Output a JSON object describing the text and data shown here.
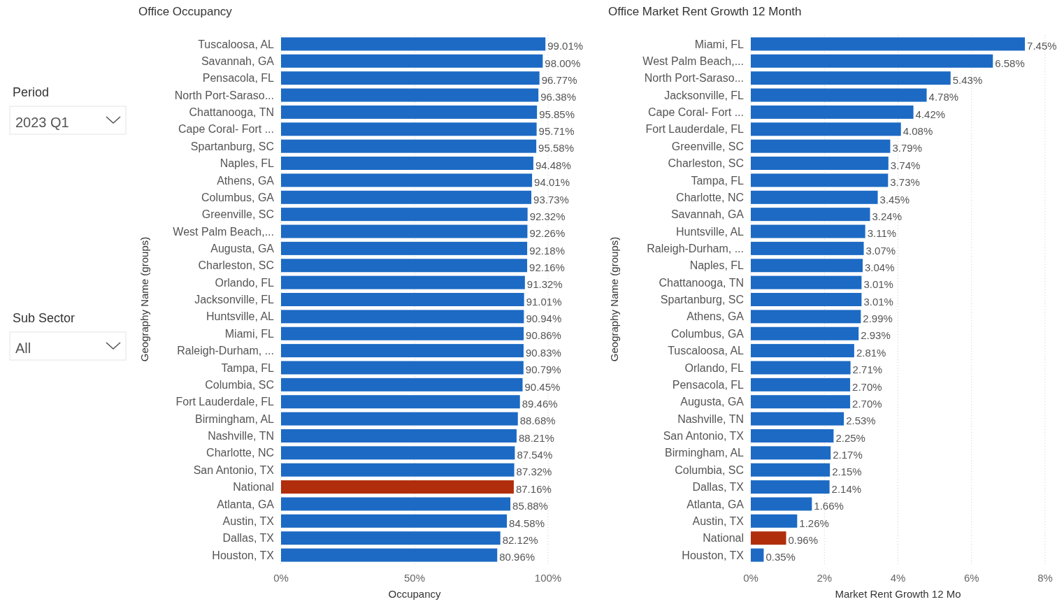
{
  "chart_data": [
    {
      "type": "other",
      "annotations": [
        "Period",
        "2023 Q1",
        "Sub Sector",
        "All"
      ]
    },
    {
      "type": "bar",
      "orientation": "horizontal",
      "title": "Office Occupancy",
      "xlabel": "Occupancy",
      "ylabel": "Geography Name (groups)",
      "grid": "x",
      "categories": [
        "Tuscaloosa, AL",
        "Savannah, GA",
        "Pensacola, FL",
        "North Port-Saraso...",
        "Chattanooga, TN",
        "Cape Coral- Fort ...",
        "Spartanburg, SC",
        "Naples, FL",
        "Athens, GA",
        "Columbus, GA",
        "Greenville, SC",
        "West Palm Beach,...",
        "Augusta, GA",
        "Charleston, SC",
        "Orlando, FL",
        "Jacksonville, FL",
        "Huntsville, AL",
        "Miami, FL",
        "Raleigh-Durham, ...",
        "Tampa, FL",
        "Columbia, SC",
        "Fort Lauderdale, FL",
        "Birmingham, AL",
        "Nashville, TN",
        "Charlotte, NC",
        "San Antonio, TX",
        "National",
        "Atlanta, GA",
        "Austin, TX",
        "Dallas, TX",
        "Houston, TX"
      ],
      "values": [
        99.01,
        98.0,
        96.77,
        96.38,
        95.85,
        95.71,
        95.58,
        94.48,
        94.01,
        93.73,
        92.32,
        92.26,
        92.18,
        92.16,
        91.32,
        91.01,
        90.94,
        90.86,
        90.83,
        90.79,
        90.45,
        89.46,
        88.68,
        88.21,
        87.54,
        87.32,
        87.16,
        85.88,
        84.58,
        82.12,
        80.96
      ],
      "value_labels": [
        "99.01%",
        "98.00%",
        "96.77%",
        "96.38%",
        "95.85%",
        "95.71%",
        "95.58%",
        "94.48%",
        "94.01%",
        "93.73%",
        "92.32%",
        "92.26%",
        "92.18%",
        "92.16%",
        "91.32%",
        "91.01%",
        "90.94%",
        "90.86%",
        "90.83%",
        "90.79%",
        "90.45%",
        "89.46%",
        "88.68%",
        "88.21%",
        "87.54%",
        "87.32%",
        "87.16%",
        "85.88%",
        "84.58%",
        "82.12%",
        "80.96%"
      ],
      "colors": [
        "#1c6ac4",
        "#1c6ac4",
        "#1c6ac4",
        "#1c6ac4",
        "#1c6ac4",
        "#1c6ac4",
        "#1c6ac4",
        "#1c6ac4",
        "#1c6ac4",
        "#1c6ac4",
        "#1c6ac4",
        "#1c6ac4",
        "#1c6ac4",
        "#1c6ac4",
        "#1c6ac4",
        "#1c6ac4",
        "#1c6ac4",
        "#1c6ac4",
        "#1c6ac4",
        "#1c6ac4",
        "#1c6ac4",
        "#1c6ac4",
        "#1c6ac4",
        "#1c6ac4",
        "#1c6ac4",
        "#1c6ac4",
        "#b02e0c",
        "#1c6ac4",
        "#1c6ac4",
        "#1c6ac4",
        "#1c6ac4"
      ],
      "xlim": [
        0,
        100
      ],
      "xticks": [
        {
          "value": 0,
          "label": "0%"
        },
        {
          "value": 50,
          "label": "50%"
        },
        {
          "value": 100,
          "label": "100%"
        }
      ]
    },
    {
      "type": "bar",
      "orientation": "horizontal",
      "title": "Office Market Rent Growth 12 Month",
      "xlabel": "Market Rent Growth 12 Mo",
      "ylabel": "Geography Name (groups)",
      "grid": "x",
      "categories": [
        "Miami, FL",
        "West Palm Beach,...",
        "North Port-Saraso...",
        "Jacksonville, FL",
        "Cape Coral- Fort ...",
        "Fort Lauderdale, FL",
        "Greenville, SC",
        "Charleston, SC",
        "Tampa, FL",
        "Charlotte, NC",
        "Savannah, GA",
        "Huntsville, AL",
        "Raleigh-Durham, ...",
        "Naples, FL",
        "Chattanooga, TN",
        "Spartanburg, SC",
        "Athens, GA",
        "Columbus, GA",
        "Tuscaloosa, AL",
        "Orlando, FL",
        "Pensacola, FL",
        "Augusta, GA",
        "Nashville, TN",
        "San Antonio, TX",
        "Birmingham, AL",
        "Columbia, SC",
        "Dallas, TX",
        "Atlanta, GA",
        "Austin, TX",
        "National",
        "Houston, TX"
      ],
      "values": [
        7.45,
        6.58,
        5.43,
        4.78,
        4.42,
        4.08,
        3.79,
        3.74,
        3.73,
        3.45,
        3.24,
        3.11,
        3.07,
        3.04,
        3.01,
        3.01,
        2.99,
        2.93,
        2.81,
        2.71,
        2.7,
        2.7,
        2.53,
        2.25,
        2.17,
        2.15,
        2.14,
        1.66,
        1.26,
        0.96,
        0.35
      ],
      "value_labels": [
        "7.45%",
        "6.58%",
        "5.43%",
        "4.78%",
        "4.42%",
        "4.08%",
        "3.79%",
        "3.74%",
        "3.73%",
        "3.45%",
        "3.24%",
        "3.11%",
        "3.07%",
        "3.04%",
        "3.01%",
        "3.01%",
        "2.99%",
        "2.93%",
        "2.81%",
        "2.71%",
        "2.70%",
        "2.70%",
        "2.53%",
        "2.25%",
        "2.17%",
        "2.15%",
        "2.14%",
        "1.66%",
        "1.26%",
        "0.96%",
        "0.35%"
      ],
      "colors": [
        "#1c6ac4",
        "#1c6ac4",
        "#1c6ac4",
        "#1c6ac4",
        "#1c6ac4",
        "#1c6ac4",
        "#1c6ac4",
        "#1c6ac4",
        "#1c6ac4",
        "#1c6ac4",
        "#1c6ac4",
        "#1c6ac4",
        "#1c6ac4",
        "#1c6ac4",
        "#1c6ac4",
        "#1c6ac4",
        "#1c6ac4",
        "#1c6ac4",
        "#1c6ac4",
        "#1c6ac4",
        "#1c6ac4",
        "#1c6ac4",
        "#1c6ac4",
        "#1c6ac4",
        "#1c6ac4",
        "#1c6ac4",
        "#1c6ac4",
        "#1c6ac4",
        "#1c6ac4",
        "#b02e0c",
        "#1c6ac4"
      ],
      "xlim": [
        0,
        8
      ],
      "xticks": [
        {
          "value": 0,
          "label": "0%"
        },
        {
          "value": 2,
          "label": "2%"
        },
        {
          "value": 4,
          "label": "4%"
        },
        {
          "value": 6,
          "label": "6%"
        },
        {
          "value": 8,
          "label": "8%"
        }
      ]
    }
  ]
}
